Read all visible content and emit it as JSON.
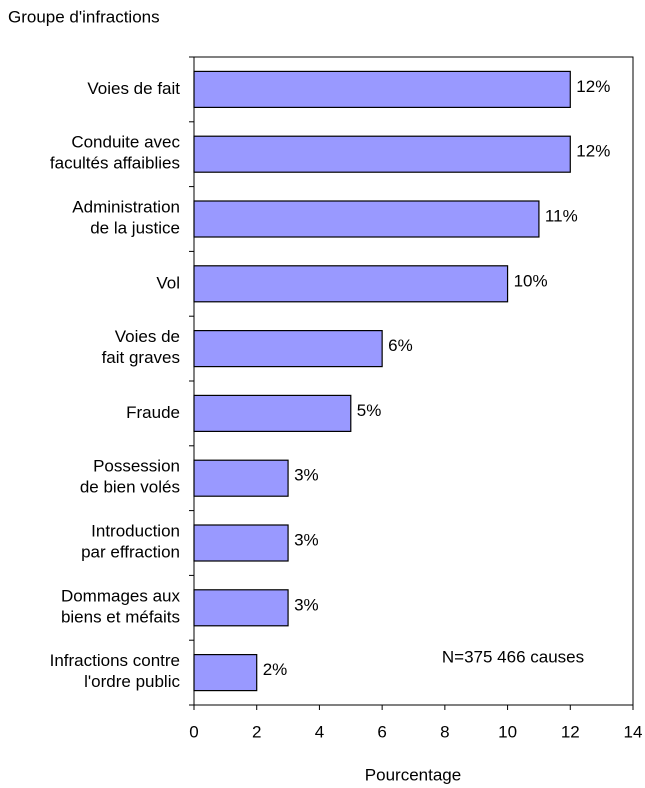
{
  "chart_data": {
    "type": "bar",
    "orientation": "horizontal",
    "y_axis_title": "Groupe d'infractions",
    "x_axis_title": "Pourcentage",
    "annotation": "N=375 466 causes",
    "categories": [
      "Voies de fait",
      "Conduite avec\nfacultés affaiblies",
      "Administration\nde la justice",
      "Vol",
      "Voies de\nfait graves",
      "Fraude",
      "Possession\nde bien volés",
      "Introduction\npar effraction",
      "Dommages aux\nbiens et méfaits",
      "Infractions contre\nl'ordre public"
    ],
    "values": [
      12,
      12,
      11,
      10,
      6,
      5,
      3,
      3,
      3,
      2
    ],
    "value_labels": [
      "12%",
      "12%",
      "11%",
      "10%",
      "6%",
      "5%",
      "3%",
      "3%",
      "3%",
      "2%"
    ],
    "color": "#9999ff",
    "xlim": [
      0,
      14
    ],
    "xticks": [
      0,
      2,
      4,
      6,
      8,
      10,
      12,
      14
    ]
  }
}
